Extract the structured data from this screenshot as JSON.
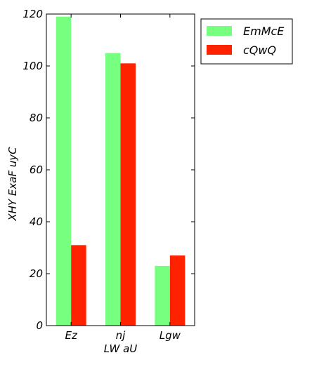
{
  "chart_data": {
    "type": "bar",
    "title": "",
    "xlabel": "LW aU",
    "ylabel": "XHY  ExaF uyC",
    "categories": [
      "Ez",
      "nj",
      "Lgw"
    ],
    "ylim": [
      0,
      120
    ],
    "yticks": [
      0,
      20,
      40,
      60,
      80,
      100,
      120
    ],
    "grid": false,
    "legend_position": "outside-top-right",
    "series": [
      {
        "name": "EmMcE",
        "color": "#77ff7f",
        "values": [
          119,
          105,
          23
        ]
      },
      {
        "name": "cQwQ",
        "color": "#ff2200",
        "values": [
          31,
          101,
          27
        ]
      }
    ]
  }
}
